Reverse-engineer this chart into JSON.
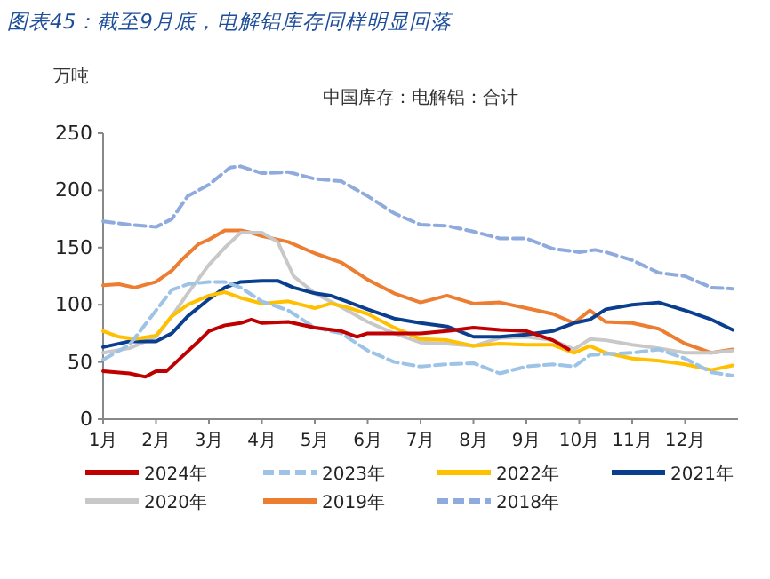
{
  "chart_data": {
    "type": "line",
    "title": "图表45：截至9月底，电解铝库存同样明显回落",
    "subtitle": "中国库存：电解铝：合计",
    "ylabel": "万吨",
    "xlim": [
      1,
      13
    ],
    "ylim": [
      0,
      250
    ],
    "yticks": [
      0,
      50,
      100,
      150,
      200,
      250
    ],
    "xticks": [
      {
        "value": 1,
        "label": "1月"
      },
      {
        "value": 2,
        "label": "2月"
      },
      {
        "value": 3,
        "label": "3月"
      },
      {
        "value": 4,
        "label": "4月"
      },
      {
        "value": 5,
        "label": "5月"
      },
      {
        "value": 6,
        "label": "6月"
      },
      {
        "value": 7,
        "label": "7月"
      },
      {
        "value": 8,
        "label": "8月"
      },
      {
        "value": 9,
        "label": "9月"
      },
      {
        "value": 10,
        "label": "10月"
      },
      {
        "value": 11,
        "label": "11月"
      },
      {
        "value": 12,
        "label": "12月"
      }
    ],
    "legend": "bottom",
    "series": [
      {
        "name": "2024年",
        "color": "#c00000",
        "line_style": "solid",
        "x": [
          1,
          1.5,
          1.8,
          2,
          2.2,
          2.5,
          2.8,
          3,
          3.3,
          3.6,
          3.8,
          4,
          4.5,
          5,
          5.5,
          5.8,
          6,
          6.5,
          7,
          7.5,
          8,
          8.5,
          9,
          9.5,
          9.8
        ],
        "values": [
          42,
          40,
          37,
          42,
          42,
          55,
          68,
          77,
          82,
          84,
          87,
          84,
          85,
          80,
          77,
          72,
          75,
          75,
          75,
          77,
          80,
          78,
          77,
          69,
          61
        ]
      },
      {
        "name": "2023年",
        "color": "#9dc3e6",
        "line_style": "dashed",
        "x": [
          1,
          1.5,
          2,
          2.3,
          2.6,
          3,
          3.3,
          3.6,
          4,
          4.5,
          5,
          5.5,
          6,
          6.5,
          7,
          7.5,
          8,
          8.5,
          9,
          9.5,
          9.9,
          10.2,
          10.5,
          11,
          11.5,
          12,
          12.5,
          12.9
        ],
        "values": [
          52,
          65,
          95,
          113,
          118,
          120,
          120,
          115,
          103,
          95,
          80,
          75,
          60,
          50,
          46,
          48,
          49,
          40,
          46,
          48,
          46,
          56,
          57,
          58,
          61,
          53,
          41,
          38
        ]
      },
      {
        "name": "2022年",
        "color": "#ffc000",
        "line_style": "solid",
        "x": [
          1,
          1.3,
          1.6,
          2,
          2.3,
          2.6,
          3,
          3.3,
          3.6,
          4,
          4.5,
          5,
          5.3,
          5.6,
          6,
          6.5,
          7,
          7.5,
          8,
          8.5,
          9,
          9.5,
          9.9,
          10.2,
          10.5,
          11,
          11.5,
          12,
          12.5,
          12.9
        ],
        "values": [
          77,
          72,
          70,
          73,
          90,
          100,
          108,
          111,
          106,
          101,
          103,
          97,
          101,
          98,
          92,
          80,
          70,
          69,
          64,
          66,
          65,
          65,
          58,
          64,
          58,
          53,
          51,
          48,
          43,
          47
        ]
      },
      {
        "name": "2021年",
        "color": "#0a3f8f",
        "line_style": "solid",
        "x": [
          1,
          1.5,
          2,
          2.3,
          2.6,
          3,
          3.3,
          3.6,
          4,
          4.3,
          4.6,
          5,
          5.3,
          5.6,
          6,
          6.5,
          7,
          7.5,
          8,
          8.5,
          9,
          9.5,
          9.9,
          10.2,
          10.5,
          11,
          11.5,
          12,
          12.5,
          12.9
        ],
        "values": [
          63,
          68,
          68,
          75,
          90,
          105,
          115,
          120,
          121,
          121,
          115,
          110,
          108,
          103,
          96,
          88,
          84,
          81,
          72,
          72,
          74,
          77,
          84,
          87,
          96,
          100,
          102,
          95,
          87,
          78
        ]
      },
      {
        "name": "2020年",
        "color": "#c8c8c8",
        "line_style": "solid",
        "x": [
          1,
          1.5,
          2,
          2.3,
          2.6,
          3,
          3.3,
          3.6,
          4,
          4.3,
          4.6,
          5,
          5.5,
          6,
          6.5,
          7,
          7.5,
          8,
          8.5,
          9,
          9.5,
          9.9,
          10.2,
          10.5,
          11,
          11.5,
          12,
          12.5,
          12.9
        ],
        "values": [
          58,
          62,
          72,
          90,
          110,
          135,
          150,
          163,
          163,
          155,
          125,
          110,
          98,
          85,
          75,
          67,
          66,
          64,
          71,
          72,
          69,
          61,
          70,
          69,
          65,
          62,
          58,
          58,
          60
        ]
      },
      {
        "name": "2019年",
        "color": "#ed7d31",
        "line_style": "solid",
        "x": [
          1,
          1.3,
          1.6,
          2,
          2.3,
          2.5,
          2.8,
          3,
          3.3,
          3.6,
          3.8,
          4,
          4.5,
          5,
          5.5,
          6,
          6.5,
          7,
          7.5,
          8,
          8.5,
          9,
          9.5,
          9.9,
          10.2,
          10.5,
          11,
          11.5,
          12,
          12.5,
          12.9
        ],
        "values": [
          117,
          118,
          115,
          120,
          130,
          140,
          153,
          157,
          165,
          165,
          163,
          160,
          155,
          145,
          137,
          122,
          110,
          102,
          108,
          101,
          102,
          97,
          92,
          84,
          95,
          85,
          84,
          79,
          66,
          58,
          61
        ]
      },
      {
        "name": "2018年",
        "color": "#8faadc",
        "line_style": "dashed",
        "x": [
          1,
          1.5,
          2,
          2.3,
          2.6,
          3,
          3.4,
          3.6,
          4,
          4.5,
          5,
          5.5,
          6,
          6.5,
          7,
          7.5,
          8,
          8.5,
          9,
          9.5,
          10,
          10.3,
          10.5,
          11,
          11.5,
          12,
          12.5,
          12.9
        ],
        "values": [
          173,
          170,
          168,
          175,
          195,
          205,
          220,
          221,
          215,
          216,
          210,
          208,
          195,
          180,
          170,
          169,
          164,
          158,
          158,
          149,
          146,
          148,
          146,
          139,
          128,
          125,
          115,
          114
        ]
      }
    ]
  }
}
